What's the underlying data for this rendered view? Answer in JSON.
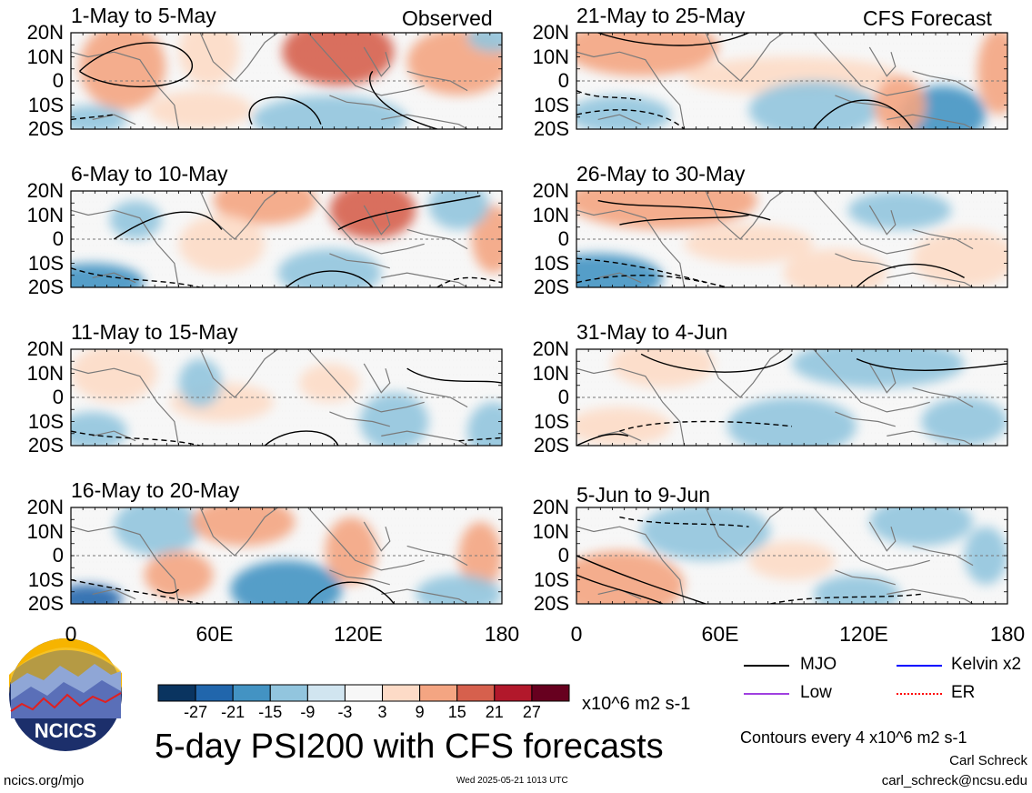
{
  "header": {
    "observed_label": "Observed",
    "forecast_label": "CFS Forecast"
  },
  "panels": [
    {
      "id": "p1",
      "title": "1-May to 5-May",
      "column": "observed"
    },
    {
      "id": "p2",
      "title": "6-May to 10-May",
      "column": "observed"
    },
    {
      "id": "p3",
      "title": "11-May to 15-May",
      "column": "observed"
    },
    {
      "id": "p4",
      "title": "16-May to 20-May",
      "column": "observed"
    },
    {
      "id": "p5",
      "title": "21-May to 25-May",
      "column": "forecast"
    },
    {
      "id": "p6",
      "title": "26-May to 30-May",
      "column": "forecast"
    },
    {
      "id": "p7",
      "title": "31-May to 4-Jun",
      "column": "forecast"
    },
    {
      "id": "p8",
      "title": "5-Jun to 9-Jun",
      "column": "forecast"
    }
  ],
  "lat_ticks": [
    "20N",
    "10N",
    "0",
    "10S",
    "20S"
  ],
  "lon_ticks": [
    "0",
    "60E",
    "120E",
    "180"
  ],
  "colorbar": {
    "labels": [
      "-27",
      "-21",
      "-15",
      "-9",
      "-3",
      "3",
      "9",
      "15",
      "21",
      "27"
    ],
    "colors": [
      "#0a3460",
      "#2166ac",
      "#4393c3",
      "#92c5de",
      "#d1e5f0",
      "#f7f7f7",
      "#fddbc7",
      "#f4a582",
      "#d6604d",
      "#b2182b",
      "#67001f"
    ],
    "units": "x10^6 m2 s-1"
  },
  "legend": {
    "items": [
      {
        "label": "MJO",
        "color": "#000000"
      },
      {
        "label": "Kelvin x2",
        "color": "#0000ff"
      },
      {
        "label": "Low",
        "color": "#a040e0"
      },
      {
        "label": "ER",
        "color": "#ff0000"
      }
    ],
    "contour_note": "Contours every 4 x10^6 m2 s-1"
  },
  "main_title": "5-day PSI200 with CFS forecasts",
  "logo_text": "NCICS",
  "footer": {
    "website": "ncics.org/mjo",
    "timestamp": "Wed 2025-05-21 1013 UTC",
    "author": "Carl Schreck",
    "email": "carl_schreck@ncsu.edu"
  }
}
